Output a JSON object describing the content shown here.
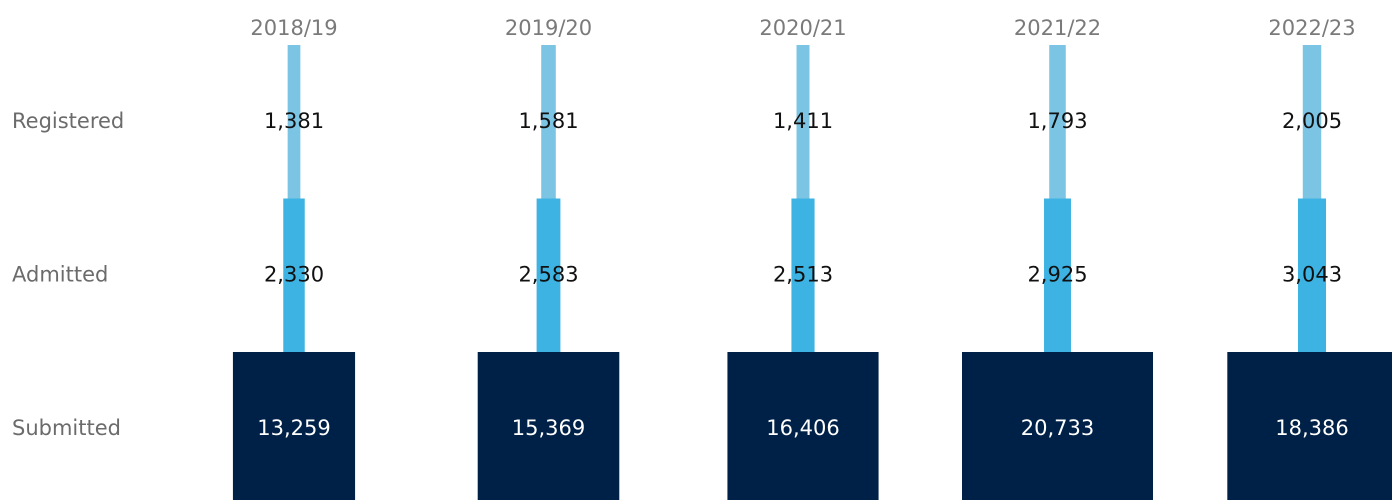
{
  "chart_data": {
    "type": "funnel",
    "categories": [
      "2018/19",
      "2019/20",
      "2020/21",
      "2021/22",
      "2022/23"
    ],
    "series": [
      {
        "name": "Registered",
        "color": "#7bc4e4",
        "text_color": "#111111",
        "values": [
          1381,
          1581,
          1411,
          1793,
          2005
        ],
        "value_labels": [
          "1,381",
          "1,581",
          "1,411",
          "1,793",
          "2,005"
        ]
      },
      {
        "name": "Admitted",
        "color": "#3db3e3",
        "text_color": "#111111",
        "values": [
          2330,
          2583,
          2513,
          2925,
          3043
        ],
        "value_labels": [
          "2,330",
          "2,583",
          "2,513",
          "2,925",
          "3,043"
        ]
      },
      {
        "name": "Submitted",
        "color": "#002147",
        "text_color": "#ffffff",
        "values": [
          13259,
          15369,
          16406,
          20733,
          18386
        ],
        "value_labels": [
          "13,259",
          "15,369",
          "16,406",
          "20,733",
          "18,386"
        ]
      }
    ]
  }
}
